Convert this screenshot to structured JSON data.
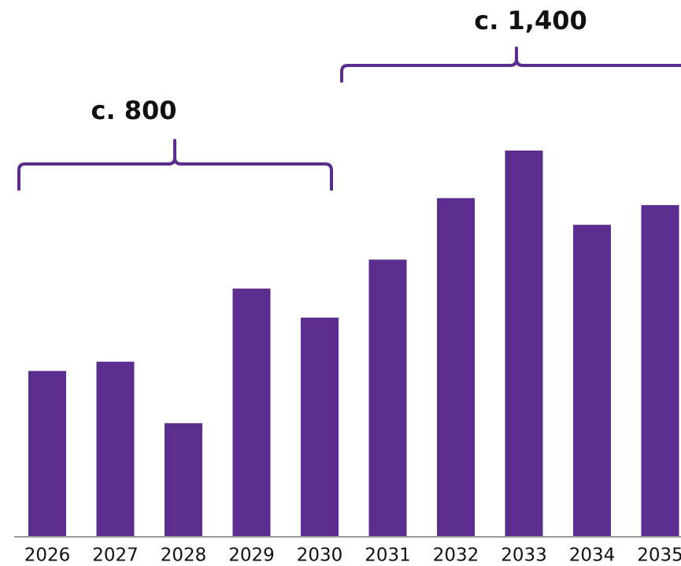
{
  "chart_data": {
    "type": "bar",
    "categories": [
      "2026",
      "2027",
      "2028",
      "2029",
      "2030",
      "2031",
      "2032",
      "2033",
      "2034",
      "2035"
    ],
    "values": [
      143,
      151,
      98,
      214,
      189,
      239,
      292,
      333,
      269,
      286
    ],
    "color": "#5b2d8e",
    "annotations": [
      "c. 800",
      "c. 1,400"
    ]
  }
}
